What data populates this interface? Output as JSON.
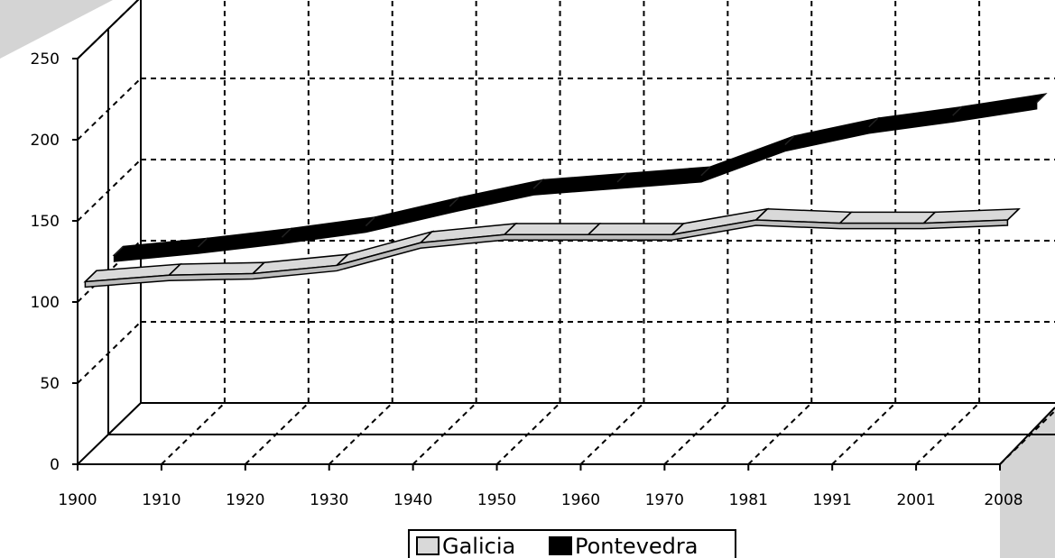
{
  "chart_data": {
    "type": "line",
    "title": "",
    "xlabel": "",
    "ylabel": "",
    "categories": [
      "1900",
      "1910",
      "1920",
      "1930",
      "1940",
      "1950",
      "1960",
      "1970",
      "1981",
      "1991",
      "2001",
      "2008"
    ],
    "ylim": [
      0,
      250
    ],
    "yticks": [
      "0",
      "50",
      "100",
      "150",
      "200",
      "250"
    ],
    "grid": true,
    "three_d": true,
    "legend_position": "bottom",
    "series": [
      {
        "name": "Galicia",
        "color": "#d9d9d9",
        "values": [
          108,
          112,
          113,
          118,
          132,
          137,
          137,
          137,
          146,
          144,
          144,
          146
        ]
      },
      {
        "name": "Pontevedra",
        "color": "#000000",
        "values": [
          107,
          112,
          118,
          125,
          137,
          148,
          152,
          156,
          175,
          186,
          193,
          201
        ]
      }
    ]
  }
}
